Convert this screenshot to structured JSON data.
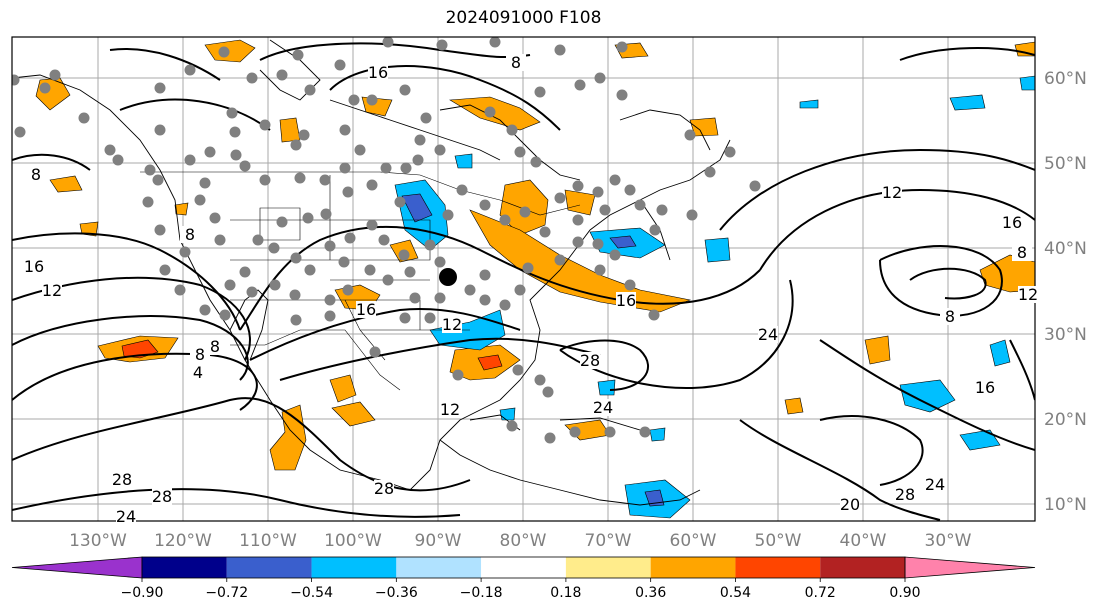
{
  "title": "2024091000 F108",
  "lat_labels": [
    "60°N",
    "50°N",
    "40°N",
    "30°N",
    "20°N",
    "10°N"
  ],
  "lon_labels": [
    "130°W",
    "120°W",
    "110°W",
    "100°W",
    "90°W",
    "80°W",
    "70°W",
    "60°W",
    "50°W",
    "40°W",
    "30°W"
  ],
  "colorbar": {
    "ticks": [
      "−0.90",
      "−0.72",
      "−0.54",
      "−0.36",
      "−0.18",
      "0.18",
      "0.36",
      "0.54",
      "0.72",
      "0.90"
    ],
    "colors": [
      "#9a32cd",
      "#00008b",
      "#3a5fcd",
      "#00bfff",
      "#b0e2ff",
      "#ffffff",
      "#ffec8b",
      "#ffa500",
      "#ff4500",
      "#b22222",
      "#ff82ab"
    ]
  },
  "contour_labels": [
    "16",
    "8",
    "8",
    "16",
    "12",
    "8",
    "12",
    "16",
    "16",
    "16",
    "12",
    "24",
    "28",
    "24",
    "28",
    "28",
    "28",
    "24",
    "20",
    "28",
    "24",
    "12",
    "16",
    "8",
    "8",
    "8",
    "4",
    "8",
    "12"
  ],
  "colors": {
    "anomaly_warm": "#ffa500",
    "anomaly_hot": "#ff4500",
    "anomaly_cool": "#00bfff",
    "anomaly_cold": "#3a5fcd",
    "station": "#808080"
  }
}
